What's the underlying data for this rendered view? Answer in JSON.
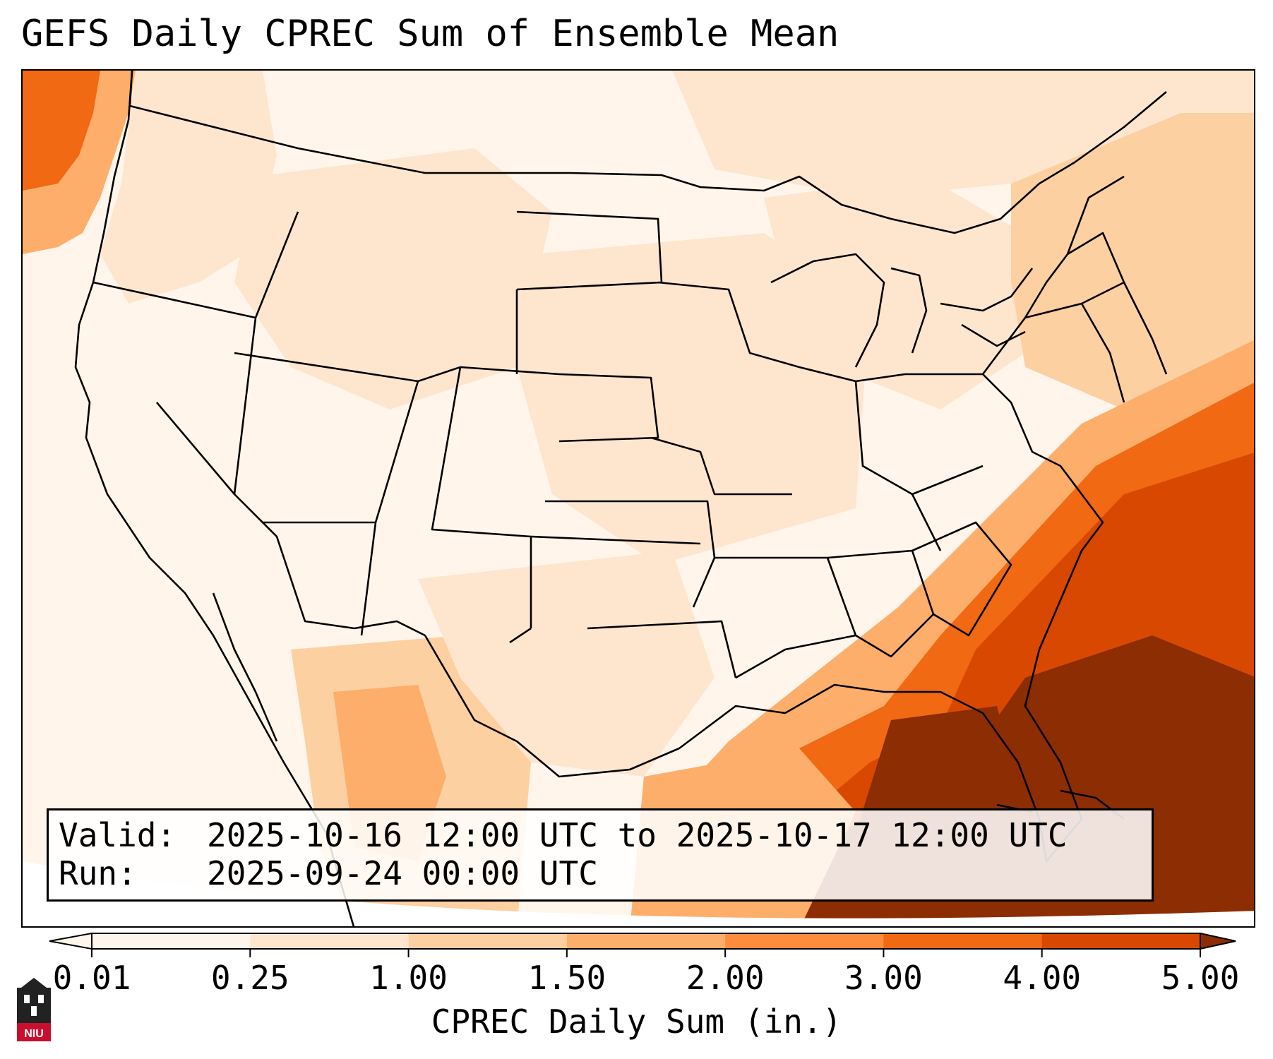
{
  "title": "GEFS Daily CPREC Sum of Ensemble Mean",
  "info": {
    "valid_label": "Valid:",
    "valid_value": "2025-10-16 12:00 UTC to 2025-10-17 12:00 UTC",
    "run_label": "Run:",
    "run_value": "2025-09-24 00:00 UTC"
  },
  "colorbar": {
    "label": "CPREC Daily Sum (in.)",
    "ticks": [
      "0.01",
      "0.25",
      "1.00",
      "1.50",
      "2.00",
      "3.00",
      "4.00",
      "5.00"
    ],
    "colors": [
      "#fff5eb",
      "#fee6ce",
      "#fdd0a2",
      "#fdae6b",
      "#fd8d3c",
      "#f16913",
      "#d94801",
      "#8c2d04"
    ],
    "extend": "both"
  },
  "map": {
    "region": "Continental United States",
    "variable": "CPREC",
    "fill_colors": {
      "none": "#fff5eb",
      "light": "#fee6ce",
      "moderate": "#fdd0a2",
      "medium": "#fdae6b",
      "heavy": "#f16913",
      "very_heavy": "#d94801",
      "extreme": "#8c2d04"
    },
    "border_color": "#000000"
  },
  "logo": {
    "name": "university-logo",
    "text": "NIU",
    "colors": {
      "primary": "#c8102e",
      "secondary": "#222222"
    }
  }
}
